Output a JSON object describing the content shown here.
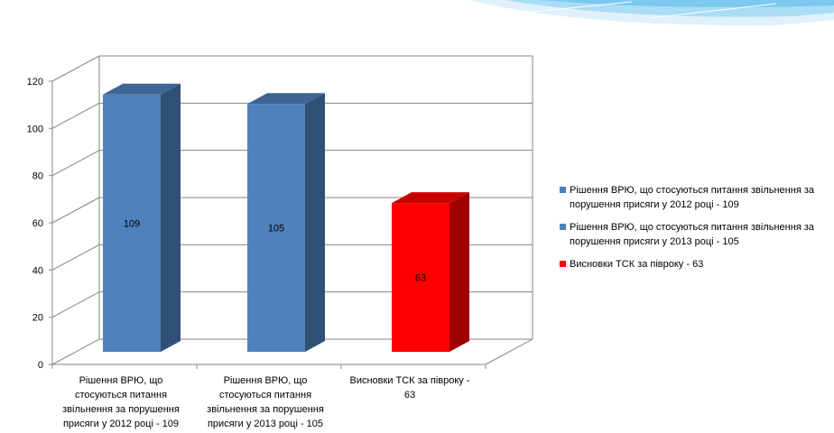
{
  "chart_data": {
    "type": "bar",
    "categories": [
      "Рішення ВРЮ, що стосуються питання звільнення за порушення присяги у 2012 році - 109",
      "Рішення ВРЮ, що стосуються питання звільнення за порушення присяги у 2013 році - 105",
      "Висновки ТСК за півроку - 63"
    ],
    "values": [
      109,
      105,
      63
    ],
    "data_labels": [
      "109",
      "105",
      "63"
    ],
    "colors": [
      "#4f81bd",
      "#4f81bd",
      "#ff0000"
    ],
    "ylim": [
      0,
      120
    ],
    "yticks": [
      "0",
      "20",
      "40",
      "60",
      "80",
      "100",
      "120"
    ],
    "grid": true,
    "three_d": true,
    "legend_position": "right",
    "legend": [
      {
        "label": "Рішення ВРЮ, що стосуються питання звільнення за порушення  присяги у 2012 році - 109",
        "color": "#4f81bd"
      },
      {
        "label": "Рішення ВРЮ, що стосуються питання звільнення за порушення  присяги у 2013 році - 105",
        "color": "#4f81bd"
      },
      {
        "label": "Висновки ТСК за півроку - 63",
        "color": "#ff0000"
      }
    ]
  },
  "category_label_lines": [
    [
      "Рішення ВРЮ, що",
      "стосуються питання",
      "звільнення за порушення",
      "присяги у 2012 році - 109"
    ],
    [
      "Рішення ВРЮ, що",
      "стосуються питання",
      "звільнення за порушення",
      "присяги у 2013 році - 105"
    ],
    [
      "Висновки ТСК за півроку -",
      "63"
    ]
  ]
}
